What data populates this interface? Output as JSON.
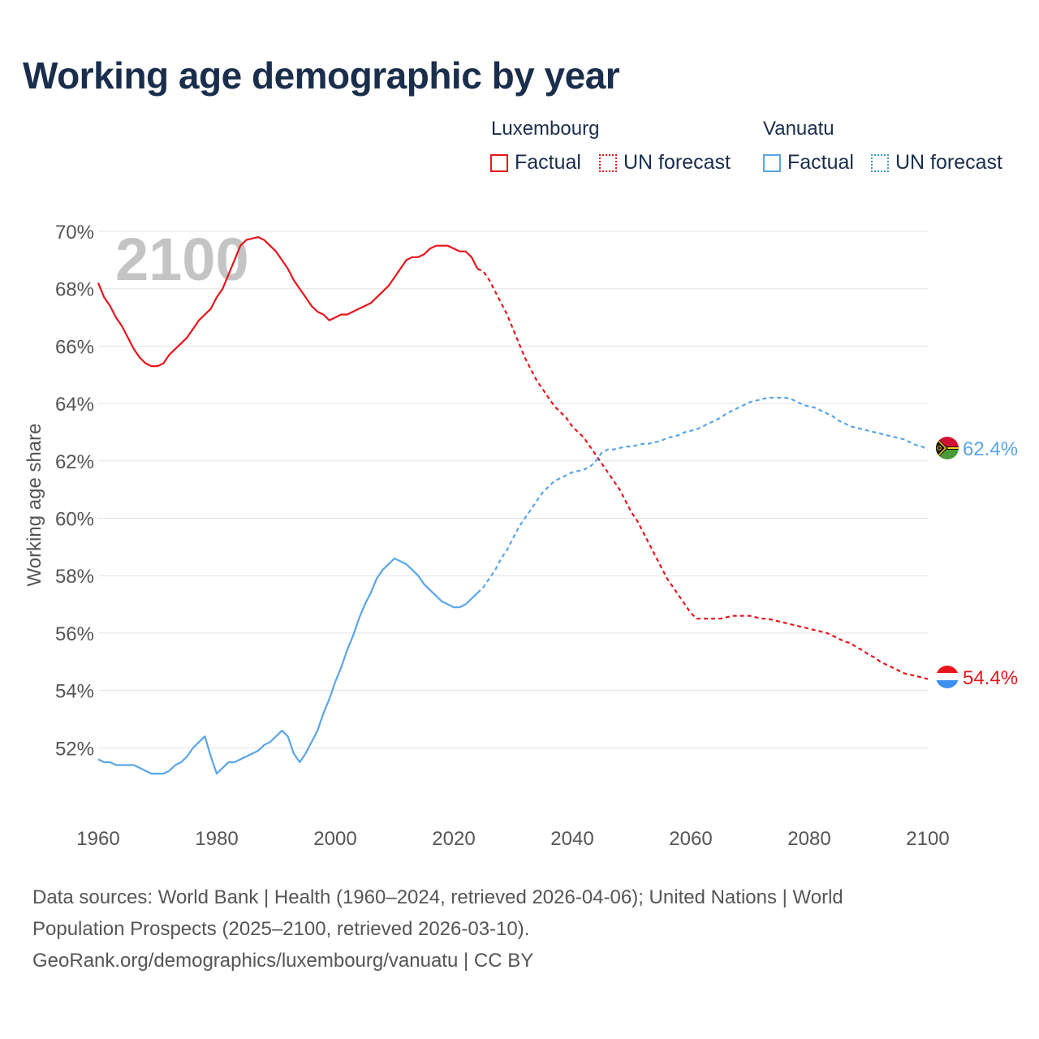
{
  "header": {
    "title": "Working age demographic by year"
  },
  "legend": {
    "groups": [
      {
        "country": "Luxembourg",
        "factual_label": "Factual",
        "forecast_label": "UN forecast",
        "color": "#e8151b"
      },
      {
        "country": "Vanuatu",
        "factual_label": "Factual",
        "forecast_label": "UN forecast",
        "color": "#5aa5e8"
      }
    ],
    "forecast_swatch_color_vanuatu": "#3a9fa8"
  },
  "chart_data": {
    "type": "line",
    "title": "Working age demographic by year",
    "ylabel": "Working age share",
    "xlabel": "",
    "year_watermark": "2100",
    "xlim": [
      1960,
      2100
    ],
    "ylim": [
      50,
      70
    ],
    "x_ticks": [
      1960,
      1980,
      2000,
      2020,
      2040,
      2060,
      2080,
      2100
    ],
    "x_tick_labels": [
      "1960",
      "1980",
      "2000",
      "2020",
      "2040",
      "2060",
      "2080",
      "2100"
    ],
    "y_ticks": [
      52,
      54,
      56,
      58,
      60,
      62,
      64,
      66,
      68,
      70
    ],
    "y_tick_labels": [
      "52%",
      "54%",
      "56%",
      "58%",
      "60%",
      "62%",
      "64%",
      "66%",
      "68%",
      "70%"
    ],
    "grid": true,
    "series": [
      {
        "name": "Luxembourg",
        "color": "#e8151b",
        "end_label": "54.4%",
        "factual": {
          "x": [
            1960,
            1961,
            1962,
            1963,
            1964,
            1965,
            1966,
            1967,
            1968,
            1969,
            1970,
            1971,
            1972,
            1973,
            1974,
            1975,
            1976,
            1977,
            1978,
            1979,
            1980,
            1981,
            1982,
            1983,
            1984,
            1985,
            1986,
            1987,
            1988,
            1989,
            1990,
            1991,
            1992,
            1993,
            1994,
            1995,
            1996,
            1997,
            1998,
            1999,
            2000,
            2001,
            2002,
            2003,
            2004,
            2005,
            2006,
            2007,
            2008,
            2009,
            2010,
            2011,
            2012,
            2013,
            2014,
            2015,
            2016,
            2017,
            2018,
            2019,
            2020,
            2021,
            2022,
            2023,
            2024
          ],
          "y": [
            68.2,
            67.7,
            67.4,
            67.0,
            66.7,
            66.3,
            65.9,
            65.6,
            65.4,
            65.3,
            65.3,
            65.4,
            65.7,
            65.9,
            66.1,
            66.3,
            66.6,
            66.9,
            67.1,
            67.3,
            67.7,
            68.0,
            68.5,
            69.0,
            69.5,
            69.7,
            69.75,
            69.8,
            69.7,
            69.5,
            69.3,
            69.0,
            68.7,
            68.3,
            68.0,
            67.7,
            67.4,
            67.2,
            67.1,
            66.9,
            67.0,
            67.1,
            67.1,
            67.2,
            67.3,
            67.4,
            67.5,
            67.7,
            67.9,
            68.1,
            68.4,
            68.7,
            69.0,
            69.1,
            69.1,
            69.2,
            69.4,
            69.5,
            69.5,
            69.5,
            69.4,
            69.3,
            69.3,
            69.1,
            68.7
          ]
        },
        "forecast": {
          "x": [
            2024,
            2025,
            2026,
            2027,
            2028,
            2029,
            2030,
            2031,
            2032,
            2033,
            2034,
            2035,
            2036,
            2037,
            2038,
            2039,
            2040,
            2041,
            2042,
            2043,
            2044,
            2045,
            2046,
            2047,
            2048,
            2049,
            2050,
            2051,
            2052,
            2053,
            2054,
            2055,
            2056,
            2057,
            2058,
            2059,
            2060,
            2061,
            2062,
            2063,
            2064,
            2065,
            2066,
            2067,
            2068,
            2069,
            2070,
            2071,
            2072,
            2073,
            2074,
            2075,
            2076,
            2077,
            2078,
            2079,
            2080,
            2081,
            2082,
            2083,
            2084,
            2085,
            2086,
            2087,
            2088,
            2089,
            2090,
            2091,
            2092,
            2093,
            2094,
            2095,
            2096,
            2097,
            2098,
            2099,
            2100
          ],
          "y": [
            68.7,
            68.6,
            68.3,
            67.9,
            67.5,
            67.1,
            66.6,
            66.1,
            65.6,
            65.2,
            64.8,
            64.5,
            64.2,
            63.9,
            63.7,
            63.5,
            63.2,
            63.0,
            62.8,
            62.5,
            62.2,
            61.9,
            61.6,
            61.3,
            61.0,
            60.6,
            60.2,
            59.9,
            59.5,
            59.1,
            58.7,
            58.3,
            57.9,
            57.6,
            57.3,
            57.0,
            56.7,
            56.5,
            56.5,
            56.5,
            56.5,
            56.5,
            56.55,
            56.6,
            56.6,
            56.6,
            56.6,
            56.55,
            56.5,
            56.5,
            56.45,
            56.4,
            56.35,
            56.3,
            56.25,
            56.2,
            56.15,
            56.1,
            56.05,
            56.0,
            55.9,
            55.8,
            55.7,
            55.65,
            55.5,
            55.4,
            55.25,
            55.15,
            55.0,
            54.9,
            54.8,
            54.7,
            54.6,
            54.55,
            54.5,
            54.45,
            54.4
          ]
        }
      },
      {
        "name": "Vanuatu",
        "color": "#5aa5e8",
        "end_label": "62.4%",
        "factual": {
          "x": [
            1960,
            1961,
            1962,
            1963,
            1964,
            1965,
            1966,
            1967,
            1968,
            1969,
            1970,
            1971,
            1972,
            1973,
            1974,
            1975,
            1976,
            1977,
            1978,
            1979,
            1980,
            1981,
            1982,
            1983,
            1984,
            1985,
            1986,
            1987,
            1988,
            1989,
            1990,
            1991,
            1992,
            1993,
            1994,
            1995,
            1996,
            1997,
            1998,
            1999,
            2000,
            2001,
            2002,
            2003,
            2004,
            2005,
            2006,
            2007,
            2008,
            2009,
            2010,
            2011,
            2012,
            2013,
            2014,
            2015,
            2016,
            2017,
            2018,
            2019,
            2020,
            2021,
            2022,
            2023,
            2024
          ],
          "y": [
            51.6,
            51.5,
            51.5,
            51.4,
            51.4,
            51.4,
            51.4,
            51.3,
            51.2,
            51.1,
            51.1,
            51.1,
            51.2,
            51.4,
            51.5,
            51.7,
            52.0,
            52.2,
            52.4,
            51.7,
            51.1,
            51.3,
            51.5,
            51.5,
            51.6,
            51.7,
            51.8,
            51.9,
            52.1,
            52.2,
            52.4,
            52.6,
            52.4,
            51.8,
            51.5,
            51.8,
            52.2,
            52.6,
            53.2,
            53.7,
            54.3,
            54.8,
            55.4,
            55.9,
            56.5,
            57.0,
            57.4,
            57.9,
            58.2,
            58.4,
            58.6,
            58.5,
            58.4,
            58.2,
            58.0,
            57.7,
            57.5,
            57.3,
            57.1,
            57.0,
            56.9,
            56.9,
            57.0,
            57.2,
            57.4
          ]
        },
        "forecast": {
          "x": [
            2024,
            2025,
            2026,
            2027,
            2028,
            2029,
            2030,
            2031,
            2032,
            2033,
            2034,
            2035,
            2036,
            2037,
            2038,
            2039,
            2040,
            2041,
            2042,
            2043,
            2044,
            2045,
            2046,
            2047,
            2048,
            2049,
            2050,
            2051,
            2052,
            2053,
            2054,
            2055,
            2056,
            2057,
            2058,
            2059,
            2060,
            2061,
            2062,
            2063,
            2064,
            2065,
            2066,
            2067,
            2068,
            2069,
            2070,
            2071,
            2072,
            2073,
            2074,
            2075,
            2076,
            2077,
            2078,
            2079,
            2080,
            2081,
            2082,
            2083,
            2084,
            2085,
            2086,
            2087,
            2088,
            2089,
            2090,
            2091,
            2092,
            2093,
            2094,
            2095,
            2096,
            2097,
            2098,
            2099,
            2100
          ],
          "y": [
            57.4,
            57.6,
            57.9,
            58.2,
            58.6,
            58.9,
            59.3,
            59.7,
            60.0,
            60.3,
            60.6,
            60.9,
            61.1,
            61.3,
            61.4,
            61.5,
            61.6,
            61.65,
            61.7,
            61.8,
            62.0,
            62.3,
            62.4,
            62.4,
            62.45,
            62.5,
            62.5,
            62.55,
            62.6,
            62.6,
            62.65,
            62.7,
            62.8,
            62.85,
            62.9,
            63.0,
            63.05,
            63.1,
            63.2,
            63.3,
            63.4,
            63.5,
            63.65,
            63.75,
            63.85,
            63.95,
            64.05,
            64.1,
            64.15,
            64.2,
            64.2,
            64.2,
            64.2,
            64.15,
            64.05,
            63.95,
            63.9,
            63.85,
            63.75,
            63.65,
            63.55,
            63.4,
            63.3,
            63.2,
            63.15,
            63.1,
            63.05,
            63.0,
            62.95,
            62.9,
            62.85,
            62.8,
            62.75,
            62.65,
            62.55,
            62.5,
            62.4
          ]
        }
      }
    ]
  },
  "footer": {
    "source_line1": "Data sources: World Bank | Health (1960–2024, retrieved 2026-04-06); United Nations | World",
    "source_line2": "Population Prospects (2025–2100, retrieved 2026-03-10).",
    "source_line3": "GeoRank.org/demographics/luxembourg/vanuatu | CC BY"
  }
}
